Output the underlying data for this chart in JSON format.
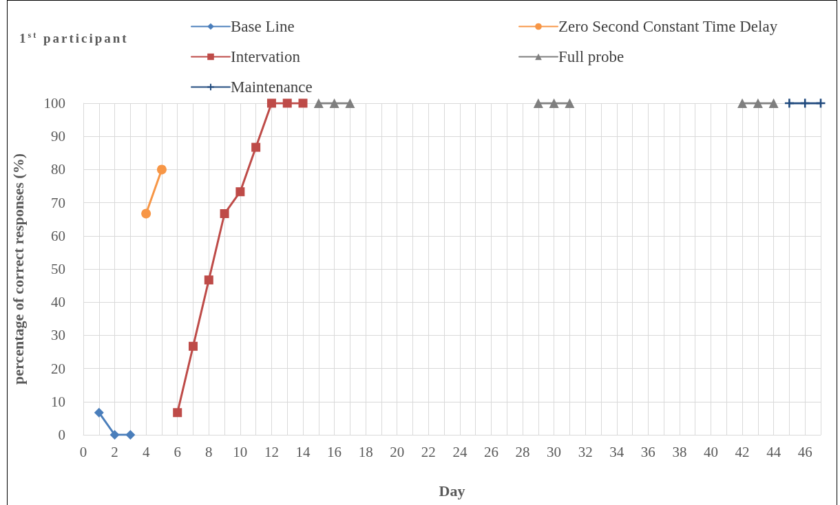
{
  "chart_data": {
    "type": "line",
    "title": "1$^{st}$ participant",
    "xlabel": "Day",
    "ylabel": "percentage of correct responses (%)",
    "xlim": [
      0,
      47
    ],
    "xticks": [
      0,
      {
        "value": 1,
        "label": null
      },
      2,
      {
        "value": 3,
        "label": null
      },
      4,
      {
        "value": 5,
        "label": null
      },
      6,
      {
        "value": 7,
        "label": null
      },
      8,
      {
        "value": 9,
        "label": null
      },
      10,
      {
        "value": 11,
        "label": null
      },
      12,
      {
        "value": 13,
        "label": null
      },
      14,
      {
        "value": 15,
        "label": null
      },
      16,
      {
        "value": 17,
        "label": null
      },
      18,
      {
        "value": 19,
        "label": null
      },
      20,
      {
        "value": 21,
        "label": null
      },
      22,
      {
        "value": 23,
        "label": null
      },
      24,
      {
        "value": 25,
        "label": null
      },
      26,
      {
        "value": 27,
        "label": null
      },
      28,
      {
        "value": 29,
        "label": null
      },
      30,
      {
        "value": 31,
        "label": null
      },
      32,
      {
        "value": 33,
        "label": null
      },
      34,
      {
        "value": 35,
        "label": null
      },
      36,
      {
        "value": 37,
        "label": null
      },
      38,
      {
        "value": 39,
        "label": null
      },
      40,
      {
        "value": 41,
        "label": null
      },
      42,
      {
        "value": 43,
        "label": null
      },
      44,
      {
        "value": 45,
        "label": null
      },
      46,
      {
        "value": 47,
        "label": null
      }
    ],
    "ylim": [
      0,
      100
    ],
    "yticks": [
      0,
      10,
      20,
      30,
      40,
      50,
      60,
      70,
      80,
      90,
      100
    ],
    "grid": true,
    "legend": "top",
    "line_style": "solid",
    "series": [
      {
        "name": "Base Line",
        "color": "#4a7ebb",
        "marker": "diamond",
        "x": [
          1,
          2,
          3
        ],
        "values": [
          6.7,
          0,
          0
        ]
      },
      {
        "name": "Zero Second Constant Time Delay",
        "color": "#f79646",
        "marker": "circle",
        "x": [
          4,
          5
        ],
        "values": [
          66.7,
          80
        ]
      },
      {
        "name": "Intervation",
        "color": "#be4b48",
        "marker": "square",
        "x": [
          6,
          7,
          8,
          9,
          10,
          11,
          12,
          13,
          14
        ],
        "values": [
          6.7,
          26.7,
          46.7,
          66.7,
          73.3,
          86.7,
          100,
          100,
          100
        ]
      },
      {
        "name": "Full probe",
        "color": "#7f7f7f",
        "marker": "triangle",
        "x": [
          15,
          16,
          17,
          29,
          30,
          31,
          42,
          43,
          44
        ],
        "values": [
          100,
          100,
          100,
          100,
          100,
          100,
          100,
          100,
          100
        ]
      },
      {
        "name": "Maintenance",
        "color": "#1f497d",
        "marker": "cross",
        "x": [
          45,
          46,
          47
        ],
        "values": [
          100,
          100,
          100
        ]
      }
    ]
  }
}
